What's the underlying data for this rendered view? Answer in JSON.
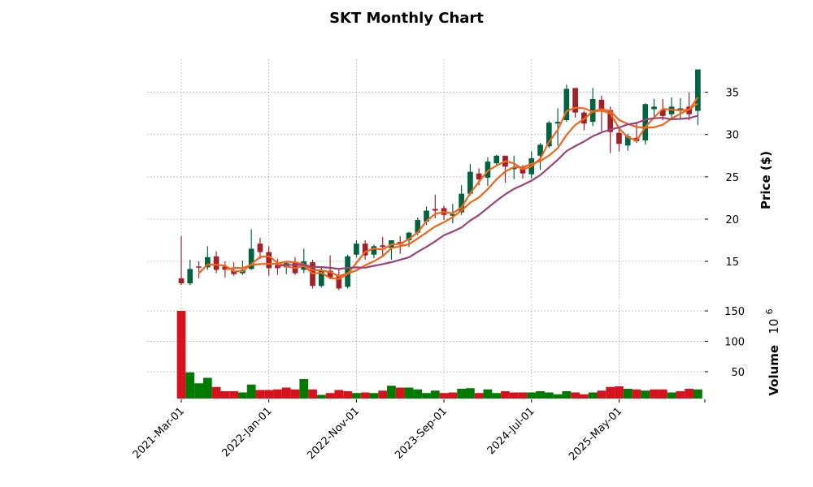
{
  "chart_data": {
    "type": "candlestick",
    "title": "SKT Monthly Chart",
    "ylabel": "Price ($)",
    "volume_label": "Volume",
    "volume_exponent": "10",
    "volume_exponent_power": "6",
    "start_month": "2021-03",
    "x_ticks": [
      {
        "label": "2021-Mar-01",
        "index": 0
      },
      {
        "label": "2022-Jan-01",
        "index": 10
      },
      {
        "label": "2022-Nov-01",
        "index": 20
      },
      {
        "label": "2023-Sep-01",
        "index": 30
      },
      {
        "label": "2024-Jul-01",
        "index": 40
      },
      {
        "label": "2025-May-01",
        "index": 50
      }
    ],
    "price_ticks": [
      "15",
      "20",
      "25",
      "30",
      "35"
    ],
    "volume_ticks": [
      "50",
      "100",
      "150"
    ],
    "price_ylim": [
      10.4,
      38.9
    ],
    "volume_ylim": [
      6,
      160.7
    ],
    "xlim": [
      -3.9,
      59.8
    ],
    "moving_averages": [
      3,
      6,
      12
    ],
    "colors": {
      "up": "#006340",
      "down": "#a02128",
      "vol_up": "#007a00",
      "vol_down": "#d5121e",
      "ma": [
        "#f4641e",
        "#f06418",
        "#9b4379"
      ]
    },
    "ohlc": [
      [
        13.0,
        18.0,
        12.2,
        12.4
      ],
      [
        12.4,
        15.2,
        12.2,
        14.1
      ],
      [
        14.4,
        15.0,
        13.0,
        14.3
      ],
      [
        14.3,
        16.8,
        14.0,
        15.5
      ],
      [
        15.6,
        16.2,
        13.6,
        14.0
      ],
      [
        14.4,
        15.0,
        13.1,
        14.0
      ],
      [
        13.9,
        14.9,
        13.3,
        13.5
      ],
      [
        13.6,
        15.1,
        13.4,
        14.0
      ],
      [
        14.1,
        18.8,
        14.0,
        16.5
      ],
      [
        17.1,
        17.8,
        15.3,
        16.1
      ],
      [
        16.1,
        16.8,
        13.3,
        14.2
      ],
      [
        14.6,
        15.3,
        13.4,
        14.2
      ],
      [
        14.3,
        15.0,
        13.5,
        14.8
      ],
      [
        14.9,
        15.5,
        13.4,
        13.6
      ],
      [
        14.0,
        16.5,
        13.6,
        15.0
      ],
      [
        14.9,
        15.2,
        11.8,
        12.1
      ],
      [
        12.1,
        14.3,
        11.9,
        13.9
      ],
      [
        13.9,
        15.7,
        12.9,
        13.1
      ],
      [
        13.3,
        14.2,
        11.6,
        11.8
      ],
      [
        12.0,
        15.8,
        11.8,
        15.6
      ],
      [
        15.8,
        17.5,
        15.5,
        17.1
      ],
      [
        17.1,
        17.5,
        15.2,
        15.7
      ],
      [
        15.8,
        17.0,
        15.4,
        16.8
      ],
      [
        16.9,
        17.9,
        15.5,
        16.7
      ],
      [
        16.6,
        17.5,
        15.2,
        17.5
      ],
      [
        17.3,
        18.0,
        15.9,
        17.0
      ],
      [
        17.5,
        18.5,
        16.7,
        18.4
      ],
      [
        18.4,
        20.2,
        18.1,
        19.9
      ],
      [
        19.7,
        21.5,
        19.3,
        21.0
      ],
      [
        21.2,
        22.9,
        20.1,
        21.0
      ],
      [
        21.3,
        21.6,
        19.9,
        20.5
      ],
      [
        20.4,
        21.8,
        19.5,
        20.6
      ],
      [
        20.8,
        24.0,
        20.5,
        23.0
      ],
      [
        23.0,
        26.5,
        22.8,
        25.6
      ],
      [
        25.4,
        26.0,
        24.0,
        24.7
      ],
      [
        24.9,
        27.3,
        23.9,
        26.8
      ],
      [
        26.6,
        27.6,
        26.2,
        27.5
      ],
      [
        27.5,
        27.5,
        24.3,
        26.2
      ],
      [
        25.9,
        27.5,
        24.7,
        26.1
      ],
      [
        26.1,
        26.4,
        24.8,
        25.4
      ],
      [
        25.3,
        28.0,
        24.8,
        27.2
      ],
      [
        27.5,
        29.0,
        25.8,
        28.8
      ],
      [
        28.6,
        31.6,
        28.4,
        31.4
      ],
      [
        31.3,
        33.1,
        28.7,
        31.5
      ],
      [
        31.7,
        35.9,
        31.5,
        35.4
      ],
      [
        35.5,
        35.5,
        32.0,
        32.6
      ],
      [
        32.6,
        32.8,
        30.5,
        31.3
      ],
      [
        31.5,
        35.5,
        31.0,
        34.2
      ],
      [
        34.1,
        34.6,
        30.4,
        33.0
      ],
      [
        32.9,
        33.3,
        27.8,
        30.3
      ],
      [
        30.2,
        30.8,
        28.0,
        28.9
      ],
      [
        28.7,
        30.1,
        28.1,
        29.8
      ],
      [
        29.6,
        31.4,
        29.0,
        29.2
      ],
      [
        29.3,
        33.7,
        28.8,
        33.6
      ],
      [
        33.0,
        34.2,
        32.0,
        33.3
      ],
      [
        32.9,
        34.2,
        31.7,
        32.2
      ],
      [
        32.4,
        34.4,
        31.9,
        33.3
      ],
      [
        32.9,
        34.3,
        31.9,
        33.1
      ],
      [
        33.3,
        35.0,
        31.7,
        32.4
      ],
      [
        32.8,
        37.7,
        31.1,
        37.7
      ]
    ],
    "volume": [
      150,
      49,
      31,
      40,
      25,
      18,
      18,
      16,
      29,
      20,
      20,
      21,
      24,
      21,
      38,
      21,
      12,
      15,
      20,
      18,
      15,
      16,
      15,
      19,
      27,
      24,
      24,
      21,
      15,
      19,
      15,
      16,
      22,
      23,
      15,
      21,
      15,
      18,
      16,
      16,
      16,
      18,
      16,
      13,
      18,
      16,
      13,
      16,
      19,
      25,
      26,
      22,
      21,
      19,
      21,
      21,
      16,
      18,
      22,
      21
    ],
    "volume_up": [
      0,
      1,
      1,
      1,
      0,
      0,
      0,
      1,
      1,
      0,
      0,
      0,
      0,
      0,
      1,
      0,
      1,
      0,
      0,
      0,
      1,
      0,
      1,
      0,
      1,
      0,
      1,
      1,
      1,
      1,
      0,
      0,
      1,
      1,
      0,
      1,
      1,
      0,
      0,
      0,
      1,
      1,
      1,
      1,
      1,
      0,
      0,
      1,
      0,
      0,
      0,
      1,
      0,
      1,
      0,
      0,
      1,
      0,
      0,
      1
    ]
  }
}
